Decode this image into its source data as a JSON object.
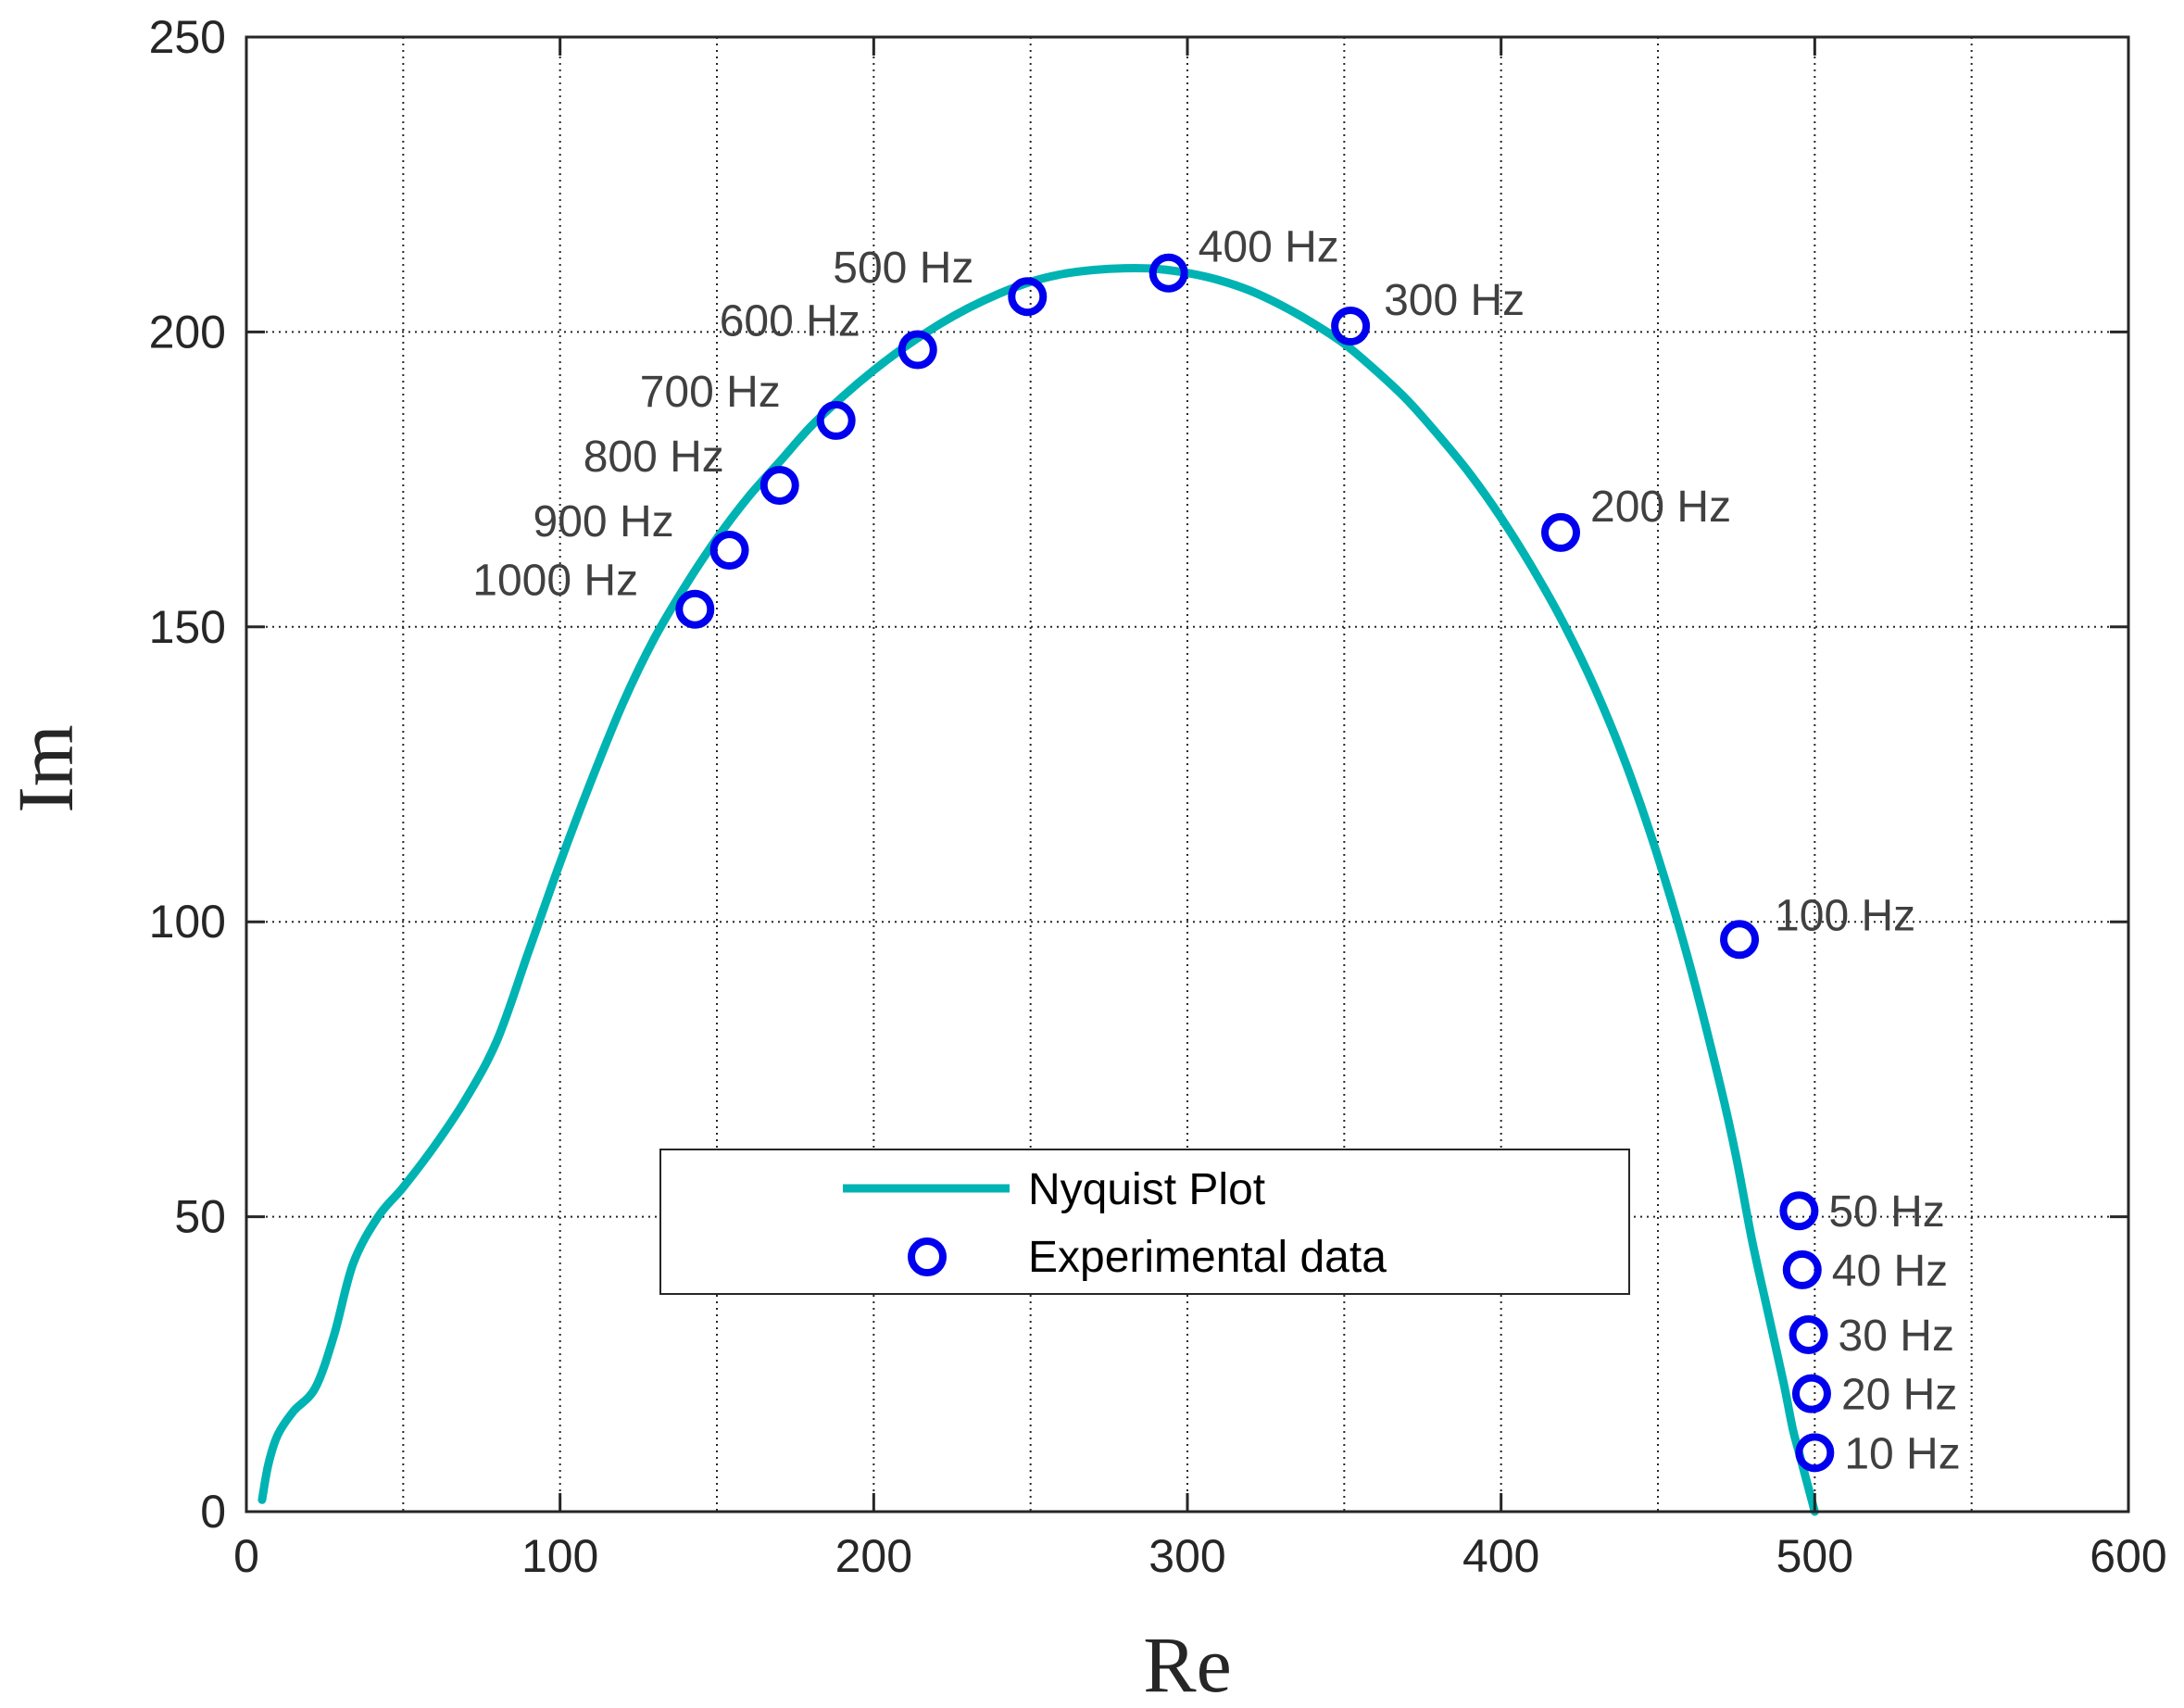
{
  "chart_data": {
    "type": "line",
    "title": "",
    "xlabel": "Re",
    "ylabel": "Im",
    "xlim": [
      0,
      600
    ],
    "ylim": [
      0,
      250
    ],
    "xticks": [
      0,
      100,
      200,
      300,
      400,
      500,
      600
    ],
    "yticks": [
      0,
      50,
      100,
      150,
      200,
      250
    ],
    "xtick_labels": [
      "0",
      "100",
      "200",
      "300",
      "400",
      "500",
      "600"
    ],
    "ytick_labels": [
      "0",
      "50",
      "100",
      "150",
      "200",
      "250"
    ],
    "grid": true,
    "legend_position": "lower-center",
    "colors": {
      "curve": "#00b3b3",
      "markers": "#0000ee",
      "grid": "#262626",
      "axes": "#262626"
    },
    "series": [
      {
        "name": "Nyquist Plot",
        "kind": "line",
        "x": [
          5,
          7,
          10,
          15,
          22,
          28,
          34,
          42,
          50,
          60,
          70,
          80,
          90,
          100,
          110,
          120,
          130,
          140,
          150,
          160,
          170,
          180,
          190,
          200,
          210,
          220,
          230,
          240,
          250,
          260,
          270,
          280,
          290,
          300,
          310,
          320,
          330,
          340,
          350,
          360,
          370,
          380,
          390,
          400,
          410,
          420,
          430,
          440,
          450,
          460,
          470,
          475,
          480,
          485,
          490,
          493,
          495,
          497,
          499,
          500
        ],
        "y": [
          2,
          8,
          13,
          17,
          21,
          30,
          42,
          50,
          55,
          62,
          70,
          80,
          95,
          110,
          124,
          137,
          148,
          157,
          165,
          172,
          178,
          184,
          189,
          193.5,
          197.5,
          201,
          204,
          206.5,
          208.5,
          209.8,
          210.5,
          210.8,
          210.7,
          210,
          208.8,
          207,
          204.5,
          201.5,
          198,
          193.5,
          188.5,
          182.5,
          176,
          168.5,
          160,
          150.5,
          139.5,
          126.5,
          111,
          93,
          72,
          60,
          46,
          34,
          22,
          14,
          10,
          6,
          2,
          0
        ]
      },
      {
        "name": "Experimental data",
        "kind": "scatter",
        "points": [
          {
            "x": 500,
            "y": 10,
            "label": "10 Hz"
          },
          {
            "x": 499,
            "y": 20,
            "label": "20 Hz"
          },
          {
            "x": 498,
            "y": 30,
            "label": "30 Hz"
          },
          {
            "x": 496,
            "y": 41,
            "label": "40 Hz"
          },
          {
            "x": 495,
            "y": 51,
            "label": "50 Hz"
          },
          {
            "x": 476,
            "y": 97,
            "label": "100 Hz"
          },
          {
            "x": 419,
            "y": 166,
            "label": "200 Hz"
          },
          {
            "x": 352,
            "y": 201,
            "label": "300 Hz"
          },
          {
            "x": 294,
            "y": 210,
            "label": "400 Hz"
          },
          {
            "x": 249,
            "y": 206,
            "label": "500 Hz"
          },
          {
            "x": 214,
            "y": 197,
            "label": "600 Hz"
          },
          {
            "x": 188,
            "y": 185,
            "label": "700 Hz"
          },
          {
            "x": 170,
            "y": 174,
            "label": "800 Hz"
          },
          {
            "x": 154,
            "y": 163,
            "label": "900 Hz"
          },
          {
            "x": 143,
            "y": 153,
            "label": "1000 Hz"
          }
        ]
      }
    ]
  }
}
